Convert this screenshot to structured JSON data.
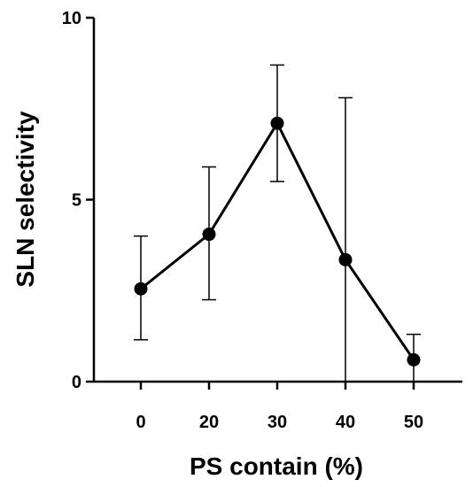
{
  "chart_data": {
    "type": "line",
    "title": "",
    "xlabel": "PS contain (%)",
    "ylabel": "SLN selectivity",
    "categories": [
      "0",
      "20",
      "30",
      "40",
      "50"
    ],
    "series": [
      {
        "values": [
          2.55,
          4.05,
          7.1,
          3.35,
          0.6
        ],
        "error_low": [
          1.15,
          2.25,
          5.5,
          0.0,
          0.0
        ],
        "error_high": [
          4.0,
          5.9,
          8.7,
          7.8,
          1.3
        ]
      }
    ],
    "ylim": [
      0,
      10
    ],
    "yticks": [
      "0",
      "5",
      "10"
    ],
    "grid": false,
    "legend": "none"
  }
}
